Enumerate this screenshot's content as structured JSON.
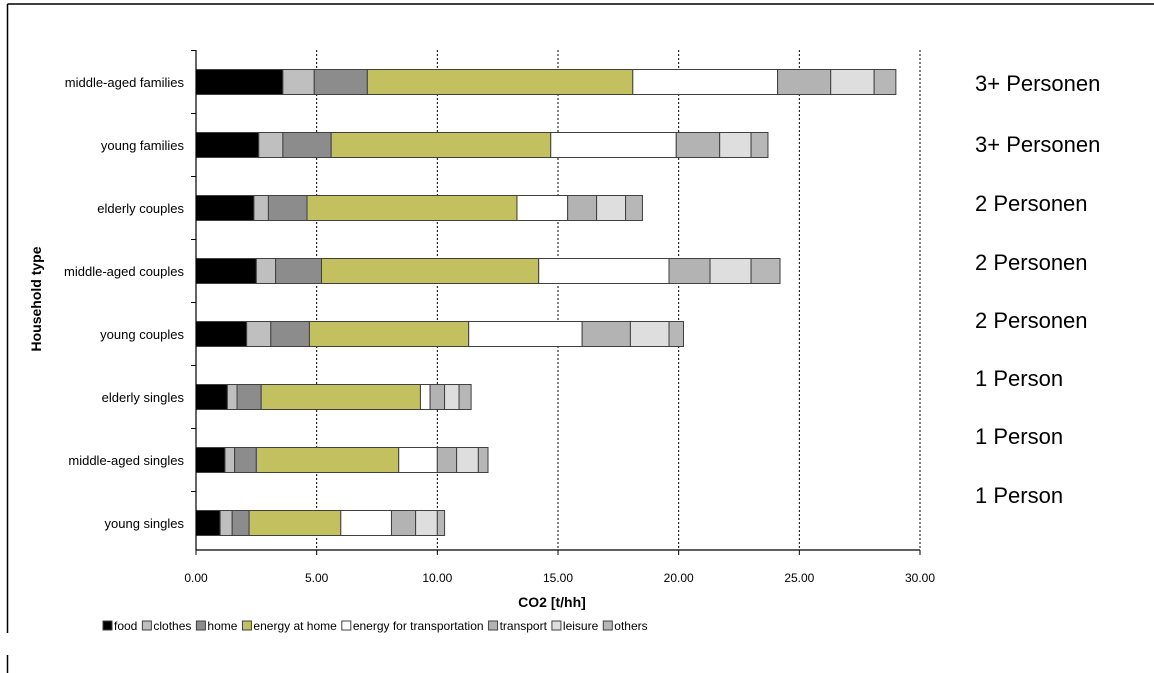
{
  "chart_data": {
    "type": "bar",
    "orientation": "horizontal",
    "stacked": true,
    "xlabel": "CO2 [t/hh]",
    "ylabel": "Household type",
    "xlim": [
      0,
      30
    ],
    "xticks": [
      "0.00",
      "5.00",
      "10.00",
      "15.00",
      "20.00",
      "25.00",
      "30.00"
    ],
    "grid": "vertical dotted",
    "legend_position": "bottom",
    "categories": [
      "middle-aged families",
      "young families",
      "elderly couples",
      "middle-aged couples",
      "young couples",
      "elderly singles",
      "middle-aged singles",
      "young singles"
    ],
    "side_labels": [
      "3+ Personen",
      "3+ Personen",
      "2 Personen",
      "2 Personen",
      "2 Personen",
      "1 Person",
      "1 Person",
      "1 Person"
    ],
    "series": [
      {
        "name": "food",
        "color": "#000000",
        "values": [
          3.6,
          2.6,
          2.4,
          2.5,
          2.1,
          1.3,
          1.2,
          1.0
        ]
      },
      {
        "name": "clothes",
        "color": "#bfbfbf",
        "values": [
          1.3,
          1.0,
          0.6,
          0.8,
          1.0,
          0.4,
          0.4,
          0.5
        ]
      },
      {
        "name": "home",
        "color": "#8c8c8c",
        "values": [
          2.2,
          2.0,
          1.6,
          1.9,
          1.6,
          1.0,
          0.9,
          0.7
        ]
      },
      {
        "name": "energy at home",
        "color": "#c3c060",
        "values": [
          11.0,
          9.1,
          8.7,
          9.0,
          6.6,
          6.6,
          5.9,
          3.8
        ]
      },
      {
        "name": "energy for transportation",
        "color": "#ffffff",
        "values": [
          6.0,
          5.2,
          2.1,
          5.4,
          4.7,
          0.4,
          1.6,
          2.1
        ]
      },
      {
        "name": "transport",
        "color": "#b3b3b3",
        "values": [
          2.2,
          1.8,
          1.2,
          1.7,
          2.0,
          0.6,
          0.8,
          1.0
        ]
      },
      {
        "name": "leisure",
        "color": "#dedede",
        "values": [
          1.8,
          1.3,
          1.2,
          1.7,
          1.6,
          0.6,
          0.9,
          0.9
        ]
      },
      {
        "name": "others",
        "color": "#b7b7b7",
        "values": [
          0.9,
          0.7,
          0.7,
          1.2,
          0.6,
          0.5,
          0.4,
          0.3
        ]
      }
    ]
  }
}
